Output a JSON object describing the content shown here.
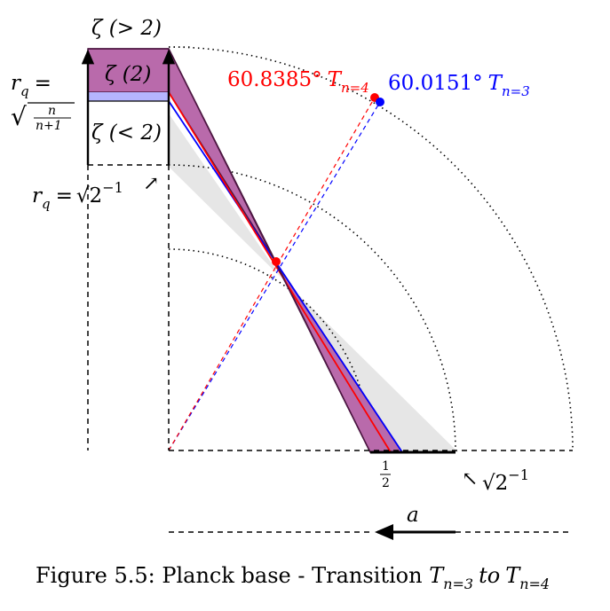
{
  "labels": {
    "zeta_gt2": "ζ (> 2)",
    "zeta_2": "ζ (2)",
    "zeta_lt2": "ζ (< 2)",
    "rq_sym": "r",
    "rq_sub": "q",
    "rq_eq": "=",
    "frac_num": "n",
    "frac_den": "n+1",
    "rq2_tail": "√2",
    "rq2_exp": "−1",
    "arrow_glyph": "↗",
    "arrow_glyph2": "↖",
    "sqrt2_right": "√2",
    "sqrt2_right_exp": "−1",
    "half_num": "1",
    "half_den": "2",
    "a_label": "a",
    "angle_red_value": "60.8385°",
    "angle_red_T": "T",
    "angle_red_sub": "n=4",
    "angle_blue_value": "60.0151°",
    "angle_blue_T": "T",
    "angle_blue_sub": "n=3"
  },
  "caption": {
    "prefix": "Figure 5.5: Planck base - Transition ",
    "T1": "T",
    "sub1": "n=3",
    "to": "to",
    "T2": "T",
    "sub2": "n=4"
  },
  "colors": {
    "red": "#ff0000",
    "blue": "#0000ff",
    "purple_fill": "#b96aab",
    "purple_edge": "#4b1540",
    "lavender": "#b5b5ff",
    "gray_band": "#e6e6e6",
    "black": "#000000"
  }
}
